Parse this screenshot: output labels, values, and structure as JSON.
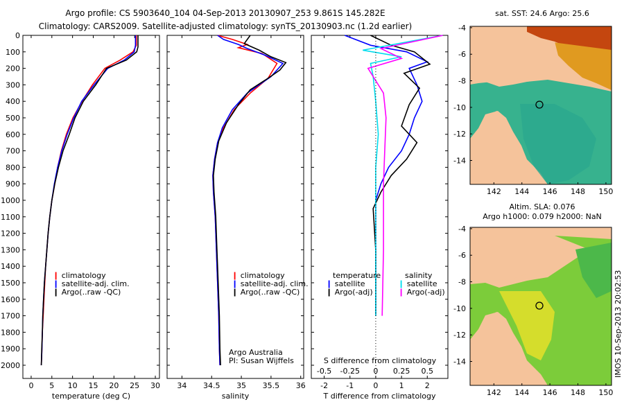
{
  "header": {
    "line1": "Argo profile: CS 5903640_104 04-Sep-2013 20130907_253 9.861S 145.282E",
    "line2": "Climatology: CARS2009. Satellite-adjusted climatology: synTS_20130903.nc (1.2d earlier)"
  },
  "chart_data": [
    {
      "type": "line",
      "panel": "temperature",
      "xlabel": "temperature (deg C)",
      "ylabel": "",
      "xlim": [
        -2,
        31
      ],
      "ylim": [
        0,
        2080
      ],
      "xticks": [
        0,
        5,
        10,
        15,
        20,
        25,
        30
      ],
      "yticks": [
        0,
        100,
        200,
        300,
        400,
        500,
        600,
        700,
        800,
        900,
        1000,
        1100,
        1200,
        1300,
        1400,
        1500,
        1600,
        1700,
        1800,
        1900,
        2000
      ],
      "legend": [
        "climatology",
        "satellite-adj. clim.",
        "Argo(..raw -QC)"
      ],
      "series": [
        {
          "name": "climatology",
          "color": "#ff0000",
          "points": [
            [
              25.4,
              0
            ],
            [
              25.4,
              60
            ],
            [
              24.6,
              100
            ],
            [
              21.5,
              150
            ],
            [
              17.8,
              200
            ],
            [
              14.8,
              300
            ],
            [
              12.3,
              400
            ],
            [
              10.1,
              500
            ],
            [
              8.5,
              600
            ],
            [
              7.3,
              700
            ],
            [
              6.4,
              800
            ],
            [
              5.7,
              900
            ],
            [
              5.0,
              1000
            ],
            [
              4.5,
              1100
            ],
            [
              4.1,
              1200
            ],
            [
              3.8,
              1300
            ],
            [
              3.5,
              1400
            ],
            [
              3.3,
              1500
            ],
            [
              3.1,
              1600
            ],
            [
              2.9,
              1700
            ],
            [
              2.7,
              1800
            ],
            [
              2.6,
              1900
            ],
            [
              2.45,
              2000
            ]
          ]
        },
        {
          "name": "satellite-adj. clim.",
          "color": "#0000ff",
          "points": [
            [
              25.2,
              0
            ],
            [
              25.2,
              60
            ],
            [
              24.9,
              100
            ],
            [
              22.5,
              150
            ],
            [
              18.5,
              200
            ],
            [
              15.2,
              300
            ],
            [
              12.2,
              400
            ],
            [
              10.3,
              500
            ],
            [
              8.7,
              600
            ],
            [
              7.4,
              700
            ],
            [
              6.4,
              800
            ],
            [
              5.6,
              900
            ],
            [
              5.0,
              1000
            ],
            [
              4.5,
              1100
            ],
            [
              4.1,
              1200
            ],
            [
              3.8,
              1300
            ],
            [
              3.5,
              1400
            ],
            [
              3.2,
              1500
            ],
            [
              3.0,
              1600
            ],
            [
              2.8,
              1700
            ],
            [
              2.7,
              1800
            ],
            [
              2.6,
              1900
            ],
            [
              2.45,
              2000
            ]
          ]
        },
        {
          "name": "Argo(..raw -QC)",
          "color": "#000000",
          "points": [
            [
              25.8,
              0
            ],
            [
              25.8,
              70
            ],
            [
              25.5,
              100
            ],
            [
              23.0,
              150
            ],
            [
              18.2,
              200
            ],
            [
              15.6,
              300
            ],
            [
              12.6,
              400
            ],
            [
              10.6,
              500
            ],
            [
              9.2,
              600
            ],
            [
              7.7,
              700
            ],
            [
              6.6,
              800
            ],
            [
              5.7,
              900
            ],
            [
              5.0,
              1000
            ],
            [
              4.5,
              1100
            ],
            [
              4.1,
              1200
            ],
            [
              3.8,
              1300
            ],
            [
              3.5,
              1400
            ],
            [
              3.2,
              1500
            ],
            [
              3.0,
              1600
            ],
            [
              2.8,
              1700
            ],
            [
              2.7,
              1800
            ],
            [
              2.55,
              1900
            ],
            [
              2.45,
              2000
            ]
          ]
        }
      ]
    },
    {
      "type": "line",
      "panel": "salinity",
      "xlabel": "salinity",
      "xlim": [
        33.75,
        36.05
      ],
      "ylim": [
        0,
        2080
      ],
      "xticks": [
        34,
        34.5,
        35,
        35.5,
        36
      ],
      "legend": [
        "climatology",
        "satellite-adj. clim.",
        "Argo(..raw -QC)"
      ],
      "annotation": [
        "Argo Australia",
        "PI: Susan Wijffels"
      ],
      "series": [
        {
          "name": "climatology",
          "color": "#ff0000",
          "points": [
            [
              34.6,
              0
            ],
            [
              34.85,
              25
            ],
            [
              35.1,
              55
            ],
            [
              34.95,
              75
            ],
            [
              35.35,
              110
            ],
            [
              35.6,
              170
            ],
            [
              35.45,
              260
            ],
            [
              35.15,
              350
            ],
            [
              34.88,
              450
            ],
            [
              34.7,
              560
            ],
            [
              34.6,
              650
            ],
            [
              34.55,
              750
            ],
            [
              34.52,
              850
            ],
            [
              34.53,
              950
            ],
            [
              34.56,
              1100
            ],
            [
              34.58,
              1300
            ],
            [
              34.6,
              1500
            ],
            [
              34.62,
              1700
            ],
            [
              34.63,
              1900
            ],
            [
              34.64,
              2000
            ]
          ]
        },
        {
          "name": "satellite-adj. clim.",
          "color": "#0000ff",
          "points": [
            [
              34.6,
              0
            ],
            [
              34.7,
              25
            ],
            [
              34.95,
              55
            ],
            [
              35.1,
              80
            ],
            [
              35.4,
              120
            ],
            [
              35.7,
              170
            ],
            [
              35.5,
              250
            ],
            [
              35.1,
              350
            ],
            [
              34.85,
              450
            ],
            [
              34.68,
              560
            ],
            [
              34.6,
              650
            ],
            [
              34.55,
              750
            ],
            [
              34.52,
              850
            ],
            [
              34.53,
              950
            ],
            [
              34.56,
              1100
            ],
            [
              34.58,
              1300
            ],
            [
              34.6,
              1500
            ],
            [
              34.62,
              1700
            ],
            [
              34.63,
              1900
            ],
            [
              34.64,
              2000
            ]
          ]
        },
        {
          "name": "Argo(..raw -QC)",
          "color": "#000000",
          "points": [
            [
              35.15,
              0
            ],
            [
              35.05,
              50
            ],
            [
              35.3,
              90
            ],
            [
              35.5,
              130
            ],
            [
              35.75,
              165
            ],
            [
              35.65,
              210
            ],
            [
              35.45,
              260
            ],
            [
              35.15,
              330
            ],
            [
              34.95,
              420
            ],
            [
              34.75,
              530
            ],
            [
              34.62,
              640
            ],
            [
              34.56,
              750
            ],
            [
              34.53,
              850
            ],
            [
              34.54,
              950
            ],
            [
              34.57,
              1100
            ],
            [
              34.59,
              1300
            ],
            [
              34.61,
              1500
            ],
            [
              34.63,
              1700
            ],
            [
              34.64,
              1900
            ],
            [
              34.65,
              2000
            ]
          ]
        }
      ]
    },
    {
      "type": "line",
      "panel": "difference",
      "xlabel": "T difference from climatology",
      "xlabel_top": "S difference from climatology",
      "xlim": [
        -2.5,
        2.8
      ],
      "ylim": [
        0,
        2080
      ],
      "xticks": [
        -2,
        -1,
        0,
        1,
        2
      ],
      "xticks_s": [
        -0.5,
        -0.25,
        0,
        0.25,
        0.5
      ],
      "legend": {
        "temperature_title": "temperature",
        "temperature": [
          "satellite",
          "Argo(-adj)"
        ],
        "salinity_title": "salinity",
        "salinity": [
          "satellite",
          "Argo(-adj)"
        ]
      },
      "series": [
        {
          "name": "T satellite",
          "color": "#0000ff",
          "points": [
            [
              -1.2,
              0
            ],
            [
              -0.2,
              60
            ],
            [
              1.2,
              100
            ],
            [
              2.0,
              160
            ],
            [
              1.3,
              200
            ],
            [
              1.6,
              300
            ],
            [
              1.8,
              400
            ],
            [
              1.5,
              500
            ],
            [
              1.3,
              600
            ],
            [
              1.0,
              700
            ],
            [
              0.5,
              800
            ],
            [
              0.2,
              900
            ],
            [
              0.0,
              1000
            ],
            [
              0.0,
              1500
            ],
            [
              0.0,
              1700
            ]
          ]
        },
        {
          "name": "T Argo(-adj)",
          "color": "#000000",
          "points": [
            [
              -0.2,
              0
            ],
            [
              0.6,
              60
            ],
            [
              1.5,
              100
            ],
            [
              2.1,
              175
            ],
            [
              1.1,
              230
            ],
            [
              1.7,
              320
            ],
            [
              1.3,
              420
            ],
            [
              1.0,
              550
            ],
            [
              1.6,
              650
            ],
            [
              1.2,
              750
            ],
            [
              0.6,
              850
            ],
            [
              0.2,
              950
            ],
            [
              -0.1,
              1050
            ],
            [
              0.0,
              1300
            ],
            [
              0.0,
              1700
            ]
          ]
        },
        {
          "name": "S satellite",
          "color": "#00ddee",
          "points": [
            [
              2.6,
              0
            ],
            [
              -0.5,
              90
            ],
            [
              1.0,
              130
            ],
            [
              -0.2,
              170
            ],
            [
              -0.1,
              250
            ],
            [
              0.0,
              400
            ],
            [
              0.1,
              600
            ],
            [
              0.0,
              800
            ],
            [
              0.0,
              1000
            ],
            [
              0.0,
              1700
            ]
          ]
        },
        {
          "name": "S Argo(-adj)",
          "color": "#ff00ff",
          "points": [
            [
              2.6,
              0
            ],
            [
              0.2,
              80
            ],
            [
              1.0,
              140
            ],
            [
              -0.3,
              200
            ],
            [
              0.3,
              350
            ],
            [
              0.4,
              500
            ],
            [
              0.35,
              700
            ],
            [
              0.3,
              900
            ],
            [
              0.3,
              1300
            ],
            [
              0.25,
              1700
            ]
          ]
        }
      ]
    },
    {
      "type": "heatmap",
      "panel": "map-sst",
      "title": "sat. SST: 24.6  Argo: 25.6",
      "xlim": [
        140.3,
        150.4
      ],
      "ylim": [
        -15.8,
        -3.9
      ],
      "xticks": [
        142,
        144,
        146,
        148,
        150
      ],
      "yticks": [
        -4,
        -6,
        -8,
        -10,
        -12,
        -14
      ],
      "argo_position": {
        "lon": 145.28,
        "lat": -9.86
      }
    },
    {
      "type": "heatmap",
      "panel": "map-sla",
      "title": "Altim. SLA: 0.076",
      "subtitle": "Argo h1000: 0.079  h2000: NaN",
      "xlim": [
        140.3,
        150.4
      ],
      "ylim": [
        -15.8,
        -3.9
      ],
      "xticks": [
        142,
        144,
        146,
        148,
        150
      ],
      "yticks": [
        -4,
        -6,
        -8,
        -10,
        -12,
        -14
      ],
      "argo_position": {
        "lon": 145.28,
        "lat": -9.86
      }
    }
  ],
  "footer": {
    "stamp": "IMOS 10-Sep-2013 20:02:53"
  }
}
